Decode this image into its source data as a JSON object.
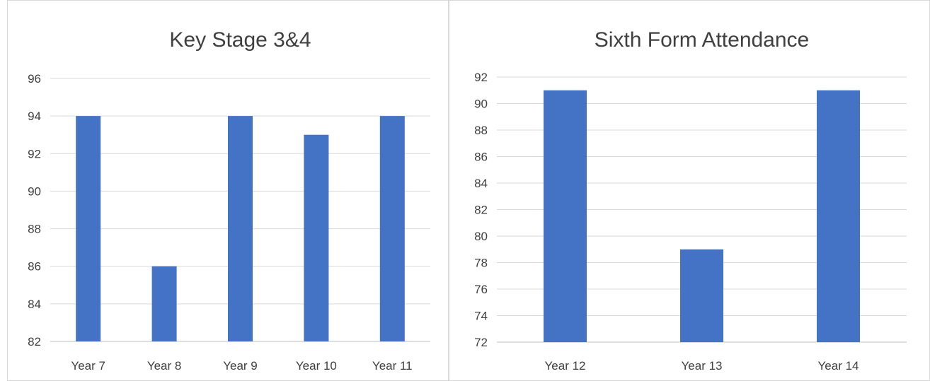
{
  "chart_data": [
    {
      "type": "bar",
      "title": "Key Stage 3&4",
      "xlabel": "",
      "ylabel": "",
      "categories": [
        "Year 7",
        "Year 8",
        "Year 9",
        "Year 10",
        "Year 11"
      ],
      "values": [
        94,
        86,
        94,
        93,
        94
      ],
      "ylim": [
        82,
        96
      ],
      "yticks": [
        82,
        84,
        86,
        88,
        90,
        92,
        94,
        96
      ],
      "grid": true,
      "legend": "none",
      "bar_color": "#4472C4"
    },
    {
      "type": "bar",
      "title": "Sixth Form Attendance",
      "xlabel": "",
      "ylabel": "",
      "categories": [
        "Year 12",
        "Year 13",
        "Year 14"
      ],
      "values": [
        91,
        79,
        91
      ],
      "ylim": [
        72,
        92
      ],
      "yticks": [
        72,
        74,
        76,
        78,
        80,
        82,
        84,
        86,
        88,
        90,
        92
      ],
      "grid": true,
      "legend": "none",
      "bar_color": "#4472C4"
    }
  ]
}
